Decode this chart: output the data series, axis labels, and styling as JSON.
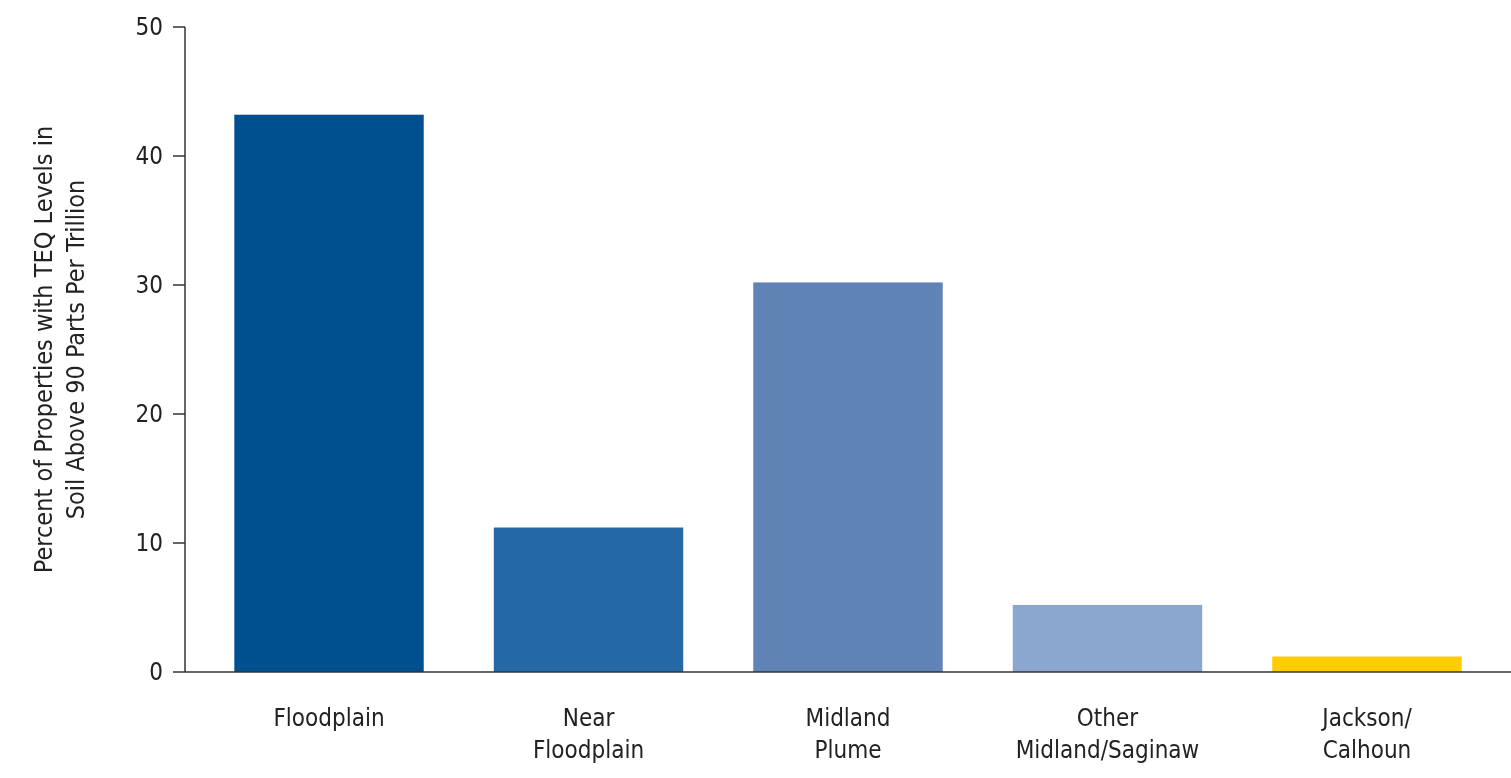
{
  "chart_data": {
    "type": "bar",
    "ylabel": "Percent of Properties with TEQ Levels in\nSoil Above 90 Parts Per Trillion",
    "categories": [
      "Floodplain",
      "Near\nFloodplain",
      "Midland\nPlume",
      "Other\nMidland/Saginaw",
      "Jackson/\nCalhoun"
    ],
    "values": [
      43.2,
      11.2,
      30.2,
      5.2,
      1.2
    ],
    "colors": [
      "#00508f",
      "#2469a6",
      "#5f83b5",
      "#8ba6cf",
      "#ffcc00"
    ],
    "ylim": [
      0,
      50
    ],
    "yticks": [
      0,
      10,
      20,
      30,
      40,
      50
    ],
    "grid": false
  }
}
